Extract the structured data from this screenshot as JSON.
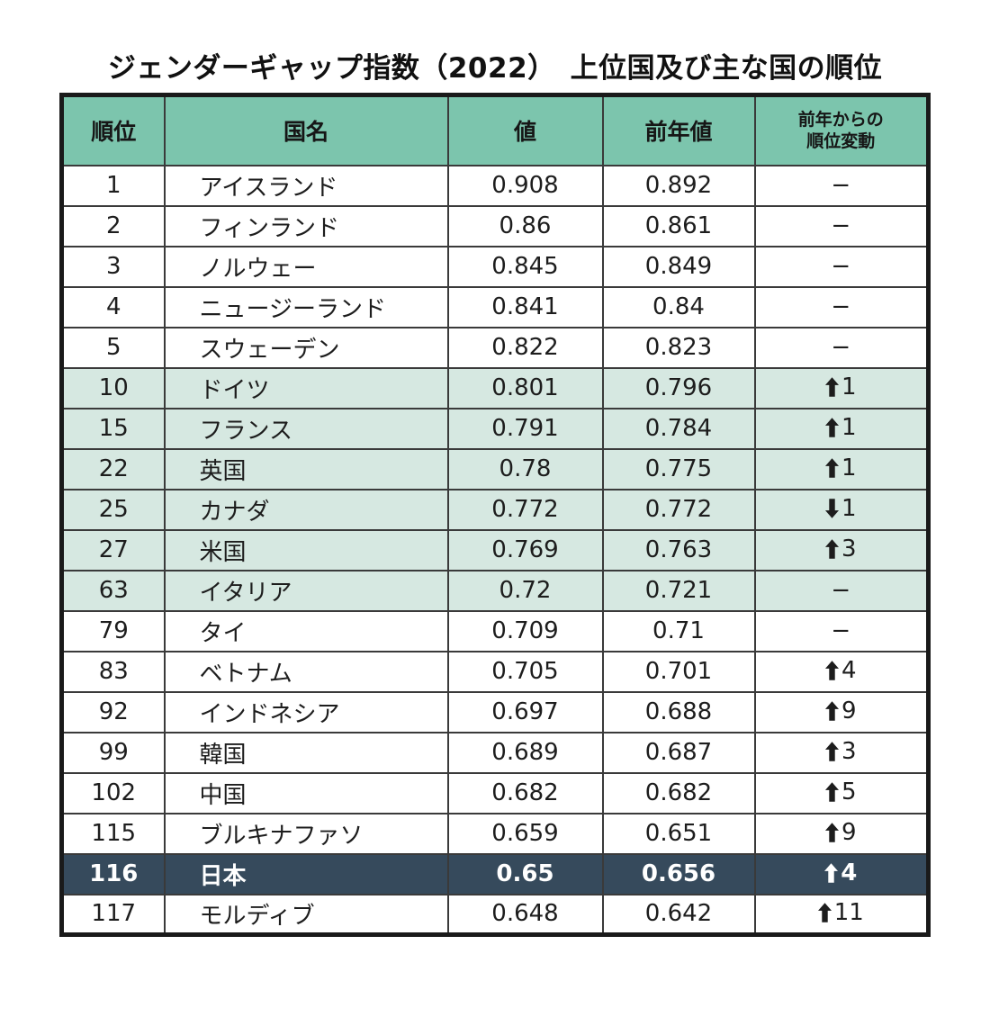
{
  "title": "ジェンダーギャップ指数（2022）　上位国及び主な国の順位",
  "colors": {
    "header_bg": "#7cc5ad",
    "tint_bg": "#d6e8e1",
    "highlight_bg": "#364a5c",
    "highlight_text": "#ffffff",
    "inner_border": "#3a3a3a",
    "outer_border": "#1a1a1a",
    "text": "#1d1d1d"
  },
  "chart_data": {
    "type": "table",
    "title": "ジェンダーギャップ指数（2022）　上位国及び主な国の順位",
    "columns": [
      {
        "key": "rank",
        "label": "順位"
      },
      {
        "key": "country",
        "label": "国名"
      },
      {
        "key": "value",
        "label": "値"
      },
      {
        "key": "prev-value",
        "label": "前年値"
      },
      {
        "key": "rank-change",
        "label": "前年からの\n順位変動"
      }
    ],
    "rows": [
      {
        "rank": "1",
        "country": "アイスランド",
        "value": "0.908",
        "prev": "0.892",
        "change_dir": "none",
        "change": "−",
        "style": "plain"
      },
      {
        "rank": "2",
        "country": "フィンランド",
        "value": "0.86",
        "prev": "0.861",
        "change_dir": "none",
        "change": "−",
        "style": "plain"
      },
      {
        "rank": "3",
        "country": "ノルウェー",
        "value": "0.845",
        "prev": "0.849",
        "change_dir": "none",
        "change": "−",
        "style": "plain"
      },
      {
        "rank": "4",
        "country": "ニュージーランド",
        "value": "0.841",
        "prev": "0.84",
        "change_dir": "none",
        "change": "−",
        "style": "plain"
      },
      {
        "rank": "5",
        "country": "スウェーデン",
        "value": "0.822",
        "prev": "0.823",
        "change_dir": "none",
        "change": "−",
        "style": "plain"
      },
      {
        "rank": "10",
        "country": "ドイツ",
        "value": "0.801",
        "prev": "0.796",
        "change_dir": "up",
        "change": "1",
        "style": "tint"
      },
      {
        "rank": "15",
        "country": "フランス",
        "value": "0.791",
        "prev": "0.784",
        "change_dir": "up",
        "change": "1",
        "style": "tint"
      },
      {
        "rank": "22",
        "country": "英国",
        "value": "0.78",
        "prev": "0.775",
        "change_dir": "up",
        "change": "1",
        "style": "tint"
      },
      {
        "rank": "25",
        "country": "カナダ",
        "value": "0.772",
        "prev": "0.772",
        "change_dir": "down",
        "change": "1",
        "style": "tint"
      },
      {
        "rank": "27",
        "country": "米国",
        "value": "0.769",
        "prev": "0.763",
        "change_dir": "up",
        "change": "3",
        "style": "tint"
      },
      {
        "rank": "63",
        "country": "イタリア",
        "value": "0.72",
        "prev": "0.721",
        "change_dir": "none",
        "change": "−",
        "style": "tint"
      },
      {
        "rank": "79",
        "country": "タイ",
        "value": "0.709",
        "prev": "0.71",
        "change_dir": "none",
        "change": "−",
        "style": "plain"
      },
      {
        "rank": "83",
        "country": "ベトナム",
        "value": "0.705",
        "prev": "0.701",
        "change_dir": "up",
        "change": "4",
        "style": "plain"
      },
      {
        "rank": "92",
        "country": "インドネシア",
        "value": "0.697",
        "prev": "0.688",
        "change_dir": "up",
        "change": "9",
        "style": "plain"
      },
      {
        "rank": "99",
        "country": "韓国",
        "value": "0.689",
        "prev": "0.687",
        "change_dir": "up",
        "change": "3",
        "style": "plain"
      },
      {
        "rank": "102",
        "country": "中国",
        "value": "0.682",
        "prev": "0.682",
        "change_dir": "up",
        "change": "5",
        "style": "plain"
      },
      {
        "rank": "115",
        "country": "ブルキナファソ",
        "value": "0.659",
        "prev": "0.651",
        "change_dir": "up",
        "change": "9",
        "style": "plain"
      },
      {
        "rank": "116",
        "country": "日本",
        "value": "0.65",
        "prev": "0.656",
        "change_dir": "up",
        "change": "4",
        "style": "highlight"
      },
      {
        "rank": "117",
        "country": "モルディブ",
        "value": "0.648",
        "prev": "0.642",
        "change_dir": "up",
        "change": "11",
        "style": "plain"
      }
    ]
  }
}
